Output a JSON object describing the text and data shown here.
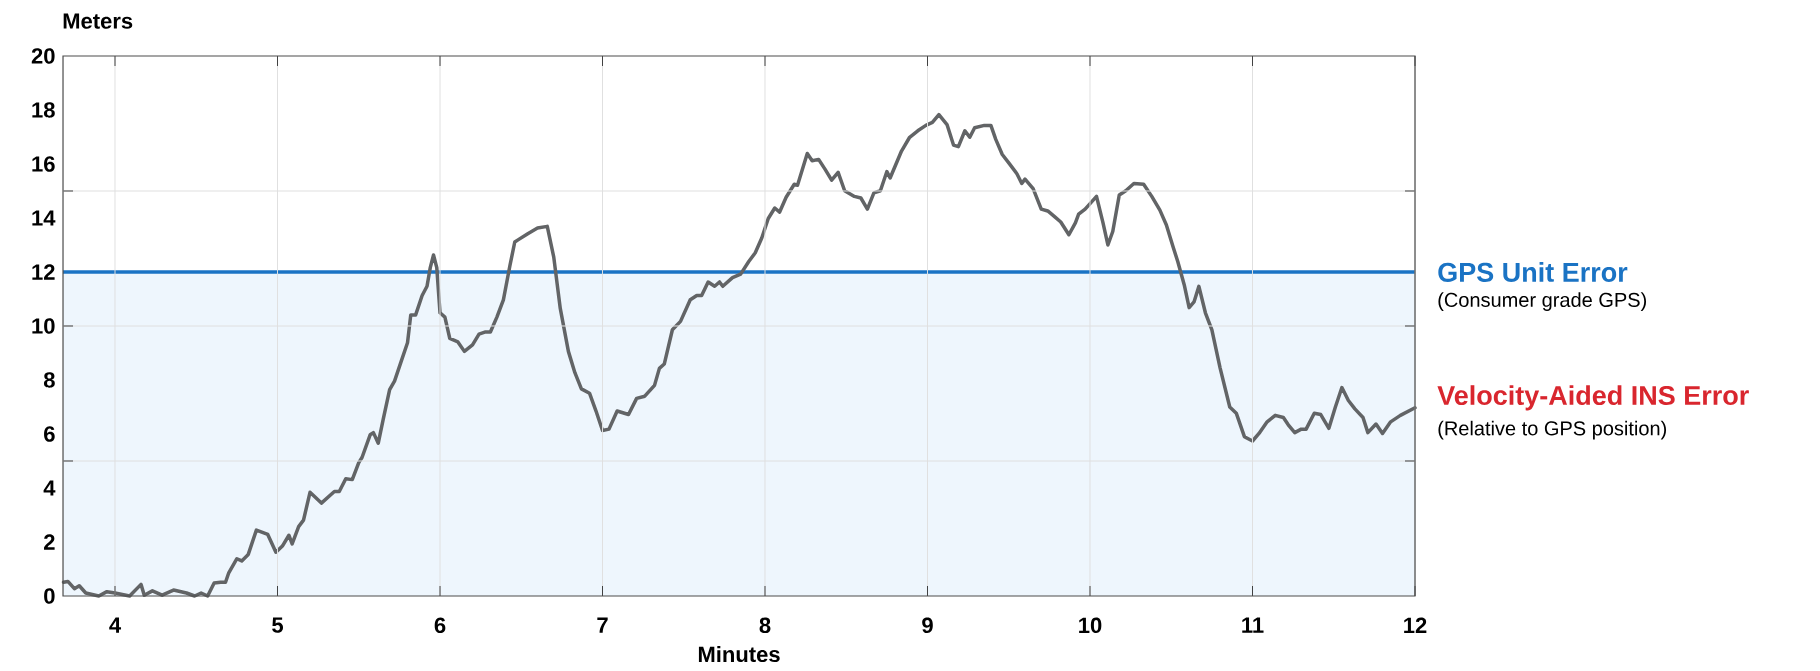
{
  "chart_data": {
    "type": "line",
    "xlabel": "Minutes",
    "ylabel": "Meters",
    "xlim": [
      3.68,
      12
    ],
    "ylim": [
      0,
      20
    ],
    "xticks": [
      4,
      5,
      6,
      7,
      8,
      9,
      10,
      11,
      12
    ],
    "yticks": [
      0,
      2,
      4,
      {
        "value": 5,
        "label": null
      },
      6,
      8,
      10,
      {
        "value": 10,
        "label": null
      },
      12,
      14,
      {
        "value": 15,
        "label": null
      },
      16,
      18,
      20
    ],
    "grid": true,
    "marker": "none",
    "line_style": "solid",
    "x": [
      3.683,
      3.71,
      3.75,
      3.78,
      3.82,
      3.9,
      3.95,
      4.0,
      4.09,
      4.16,
      4.18,
      4.23,
      4.29,
      4.36,
      4.44,
      4.49,
      4.53,
      4.57,
      4.61,
      4.65,
      4.68,
      4.7,
      4.75,
      4.78,
      4.82,
      4.87,
      4.94,
      4.99,
      5.03,
      5.07,
      5.09,
      5.13,
      5.16,
      5.2,
      5.27,
      5.35,
      5.38,
      5.42,
      5.46,
      5.5,
      5.52,
      5.57,
      5.59,
      5.62,
      5.65,
      5.69,
      5.72,
      5.76,
      5.8,
      5.82,
      5.85,
      5.89,
      5.92,
      5.94,
      5.96,
      5.98,
      6.0,
      6.03,
      6.06,
      6.11,
      6.15,
      6.2,
      6.24,
      6.28,
      6.31,
      6.35,
      6.39,
      6.43,
      6.46,
      6.48,
      6.54,
      6.6,
      6.66,
      6.7,
      6.74,
      6.79,
      6.83,
      6.87,
      6.92,
      6.96,
      7.0,
      7.04,
      7.09,
      7.16,
      7.21,
      7.26,
      7.32,
      7.35,
      7.38,
      7.43,
      7.48,
      7.54,
      7.58,
      7.61,
      7.65,
      7.69,
      7.72,
      7.74,
      7.8,
      7.85,
      7.9,
      7.94,
      7.98,
      8.02,
      8.06,
      8.09,
      8.13,
      8.18,
      8.2,
      8.26,
      8.29,
      8.33,
      8.37,
      8.41,
      8.45,
      8.49,
      8.55,
      8.59,
      8.63,
      8.67,
      8.71,
      8.75,
      8.77,
      8.84,
      8.89,
      8.94,
      8.99,
      9.03,
      9.07,
      9.12,
      9.16,
      9.19,
      9.23,
      9.26,
      9.29,
      9.35,
      9.39,
      9.42,
      9.46,
      9.5,
      9.55,
      9.58,
      9.6,
      9.65,
      9.7,
      9.74,
      9.78,
      9.82,
      9.87,
      9.91,
      9.93,
      9.97,
      10.04,
      10.08,
      10.11,
      10.14,
      10.18,
      10.22,
      10.27,
      10.33,
      10.38,
      10.43,
      10.47,
      10.51,
      10.54,
      10.58,
      10.61,
      10.64,
      10.67,
      10.71,
      10.75,
      10.8,
      10.86,
      10.9,
      10.95,
      11.0,
      11.04,
      11.09,
      11.14,
      11.19,
      11.22,
      11.26,
      11.3,
      11.33,
      11.38,
      11.42,
      11.47,
      11.51,
      11.55,
      11.59,
      11.63,
      11.68,
      11.71,
      11.76,
      11.8,
      11.85,
      11.91,
      12.0
    ],
    "series": [
      {
        "name": "Velocity-Aided INS Error",
        "color": "#626466",
        "values": [
          0.51,
          0.54,
          0.27,
          0.38,
          0.11,
          0.0,
          0.16,
          0.11,
          0.0,
          0.43,
          0.03,
          0.19,
          0.03,
          0.22,
          0.11,
          0.0,
          0.11,
          0.0,
          0.48,
          0.51,
          0.51,
          0.86,
          1.38,
          1.3,
          1.54,
          2.44,
          2.28,
          1.62,
          1.85,
          2.25,
          1.93,
          2.57,
          2.81,
          3.84,
          3.44,
          3.87,
          3.87,
          4.34,
          4.31,
          4.94,
          5.13,
          5.97,
          6.05,
          5.66,
          6.53,
          7.64,
          7.96,
          8.67,
          9.38,
          10.41,
          10.41,
          11.13,
          11.47,
          12.16,
          12.63,
          12.16,
          10.49,
          10.33,
          9.54,
          9.41,
          9.06,
          9.3,
          9.7,
          9.78,
          9.78,
          10.33,
          10.97,
          12.23,
          13.11,
          13.19,
          13.42,
          13.63,
          13.69,
          12.55,
          10.65,
          9.06,
          8.27,
          7.67,
          7.51,
          6.85,
          6.13,
          6.18,
          6.85,
          6.72,
          7.32,
          7.4,
          7.8,
          8.43,
          8.59,
          9.86,
          10.17,
          10.97,
          11.13,
          11.13,
          11.63,
          11.47,
          11.63,
          11.47,
          11.79,
          11.92,
          12.39,
          12.71,
          13.26,
          13.98,
          14.37,
          14.22,
          14.77,
          15.25,
          15.21,
          16.39,
          16.12,
          16.17,
          15.8,
          15.4,
          15.69,
          15.01,
          14.8,
          14.74,
          14.33,
          14.93,
          15.01,
          15.72,
          15.48,
          16.48,
          16.99,
          17.23,
          17.43,
          17.54,
          17.83,
          17.46,
          16.7,
          16.64,
          17.23,
          16.99,
          17.34,
          17.43,
          17.43,
          16.91,
          16.35,
          16.04,
          15.64,
          15.28,
          15.44,
          15.09,
          14.33,
          14.26,
          14.06,
          13.85,
          13.38,
          13.82,
          14.14,
          14.33,
          14.8,
          13.82,
          13.0,
          13.5,
          14.85,
          15.01,
          15.28,
          15.25,
          14.8,
          14.29,
          13.74,
          12.95,
          12.39,
          11.52,
          10.68,
          10.89,
          11.47,
          10.49,
          9.86,
          8.46,
          7.0,
          6.77,
          5.9,
          5.74,
          6.02,
          6.45,
          6.69,
          6.61,
          6.34,
          6.05,
          6.18,
          6.18,
          6.77,
          6.72,
          6.21,
          7.0,
          7.72,
          7.24,
          6.93,
          6.61,
          6.05,
          6.37,
          6.02,
          6.45,
          6.69,
          6.97
        ]
      }
    ],
    "ref_lines": [
      {
        "axis": "y",
        "value": 12,
        "label": "GPS Unit Error",
        "color": "#1a73c4",
        "line_style": "solid"
      }
    ],
    "bands": [
      {
        "axis": "y",
        "from": 0,
        "to": 12,
        "color": "#eef6fd"
      }
    ],
    "annotations": [
      "(Consumer grade GPS)",
      "(Relative to GPS position)"
    ]
  }
}
